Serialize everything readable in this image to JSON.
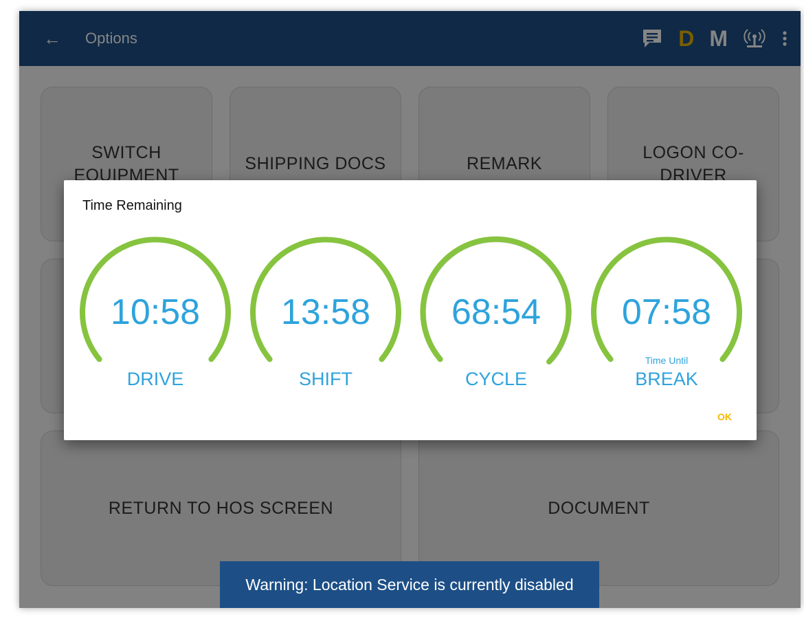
{
  "appbar": {
    "back_icon": "arrow-left-icon",
    "title": "Options",
    "message_icon": "message-icon",
    "d_label": "D",
    "m_label": "M",
    "eld_icon": "eld-connection-icon",
    "more_icon": "more-vert-icon",
    "background_color": "#1d4f86",
    "d_color": "#e8b400"
  },
  "tiles": {
    "switch_equipment": "SWITCH EQUIPMENT",
    "shipping_docs": "SHIPPING DOCS",
    "remark": "REMARK",
    "logon_co_driver": "LOGON CO-DRIVER",
    "return_to_hos": "RETURN TO HOS SCREEN",
    "document": "DOCUMENT"
  },
  "warning": "Warning: Location Service is currently disabled",
  "dialog": {
    "title": "Time Remaining",
    "ok_label": "OK",
    "gauges": [
      {
        "time": "10:58",
        "label": "DRIVE",
        "sub": ""
      },
      {
        "time": "13:58",
        "label": "SHIFT",
        "sub": ""
      },
      {
        "time": "68:54",
        "label": "CYCLE",
        "sub": ""
      },
      {
        "time": "07:58",
        "label": "BREAK",
        "sub": "Time Until"
      }
    ],
    "gauge_color": "#86c33f",
    "value_color": "#2ea3dc",
    "ok_color": "#f3b700"
  }
}
